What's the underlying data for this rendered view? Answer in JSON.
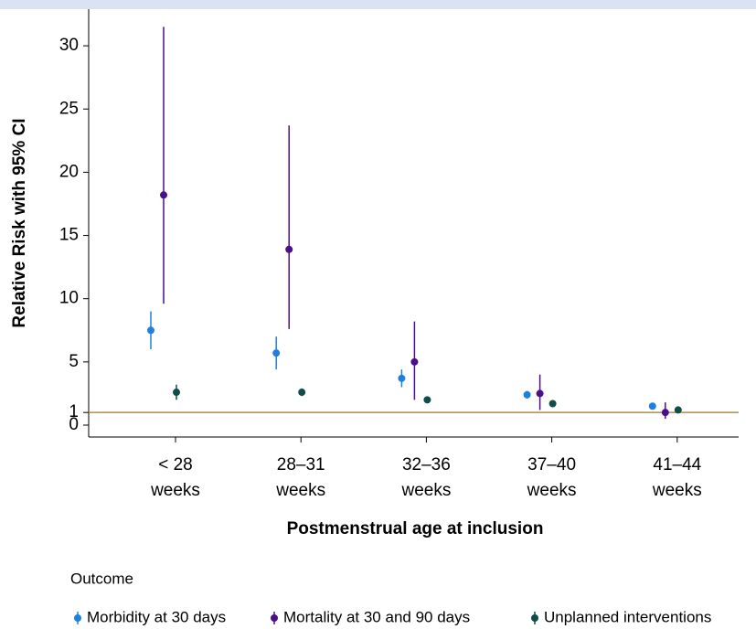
{
  "chart_data": {
    "type": "errorbar",
    "y_label": "Relative Risk with 95% CI",
    "x_label": "Postmenstrual age at inclusion",
    "legend_title": "Outcome",
    "categories": [
      [
        "< 28",
        "weeks"
      ],
      [
        "28–31",
        "weeks"
      ],
      [
        "32–36",
        "weeks"
      ],
      [
        "37–40",
        "weeks"
      ],
      [
        "41–44",
        "weeks"
      ]
    ],
    "series": [
      {
        "name": "Morbidity at 30 days",
        "color": "#1f7fe0",
        "values": [
          7.5,
          5.7,
          3.7,
          2.4,
          1.5
        ],
        "lower": [
          6.0,
          4.4,
          3.0,
          2.1,
          1.3
        ],
        "upper": [
          9.0,
          7.0,
          4.4,
          2.7,
          1.7
        ]
      },
      {
        "name": "Mortality at 30 and 90 days",
        "color": "#4b0f8a",
        "values": [
          18.2,
          13.9,
          5.0,
          2.5,
          1.0
        ],
        "lower": [
          9.6,
          7.6,
          2.0,
          1.2,
          0.5
        ],
        "upper": [
          31.5,
          23.7,
          8.2,
          4.0,
          1.8
        ]
      },
      {
        "name": "Unplanned interventions",
        "color": "#0e4d48",
        "values": [
          2.6,
          2.6,
          2.0,
          1.7,
          1.2
        ],
        "lower": [
          2.0,
          2.3,
          1.8,
          1.5,
          1.0
        ],
        "upper": [
          3.2,
          2.9,
          2.2,
          1.9,
          1.4
        ]
      }
    ],
    "ylim": [
      -0.94,
      32.9
    ],
    "yticks": [
      0,
      1,
      5,
      10,
      15,
      20,
      25,
      30
    ],
    "reference_line": {
      "value": 1,
      "color": "#b08a50"
    }
  }
}
